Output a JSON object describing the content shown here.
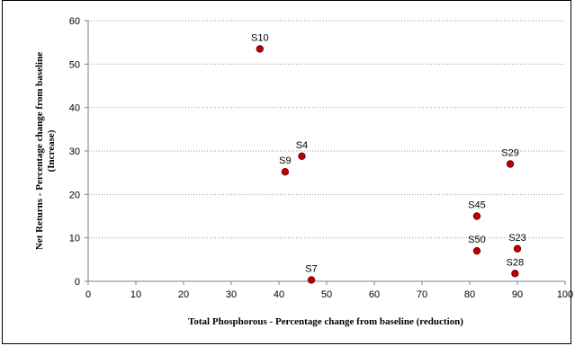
{
  "chart_data": {
    "type": "scatter",
    "title": "",
    "xlabel": "Total Phosphorous - Percentage change from baseline (reduction)",
    "ylabel_line1": "Net Returns - Percentage change from baseline",
    "ylabel_line2": "(Increase)",
    "xlim": [
      0,
      100
    ],
    "ylim": [
      0,
      60
    ],
    "x_ticks": [
      0,
      10,
      20,
      30,
      40,
      50,
      60,
      70,
      80,
      90,
      100
    ],
    "y_ticks": [
      0,
      10,
      20,
      30,
      40,
      50,
      60
    ],
    "grid": "horizontal",
    "marker_color": "#c00000",
    "marker_edge_color": "#7f0000",
    "points": [
      {
        "label": "S10",
        "x": 36,
        "y": 53.5
      },
      {
        "label": "S4",
        "x": 44.8,
        "y": 28.8
      },
      {
        "label": "S9",
        "x": 41.3,
        "y": 25.2
      },
      {
        "label": "S29",
        "x": 88.5,
        "y": 27
      },
      {
        "label": "S45",
        "x": 81.5,
        "y": 15
      },
      {
        "label": "S50",
        "x": 81.5,
        "y": 7
      },
      {
        "label": "S23",
        "x": 90,
        "y": 7.5
      },
      {
        "label": "S28",
        "x": 89.5,
        "y": 1.8
      },
      {
        "label": "S7",
        "x": 46.8,
        "y": 0.3
      }
    ]
  }
}
